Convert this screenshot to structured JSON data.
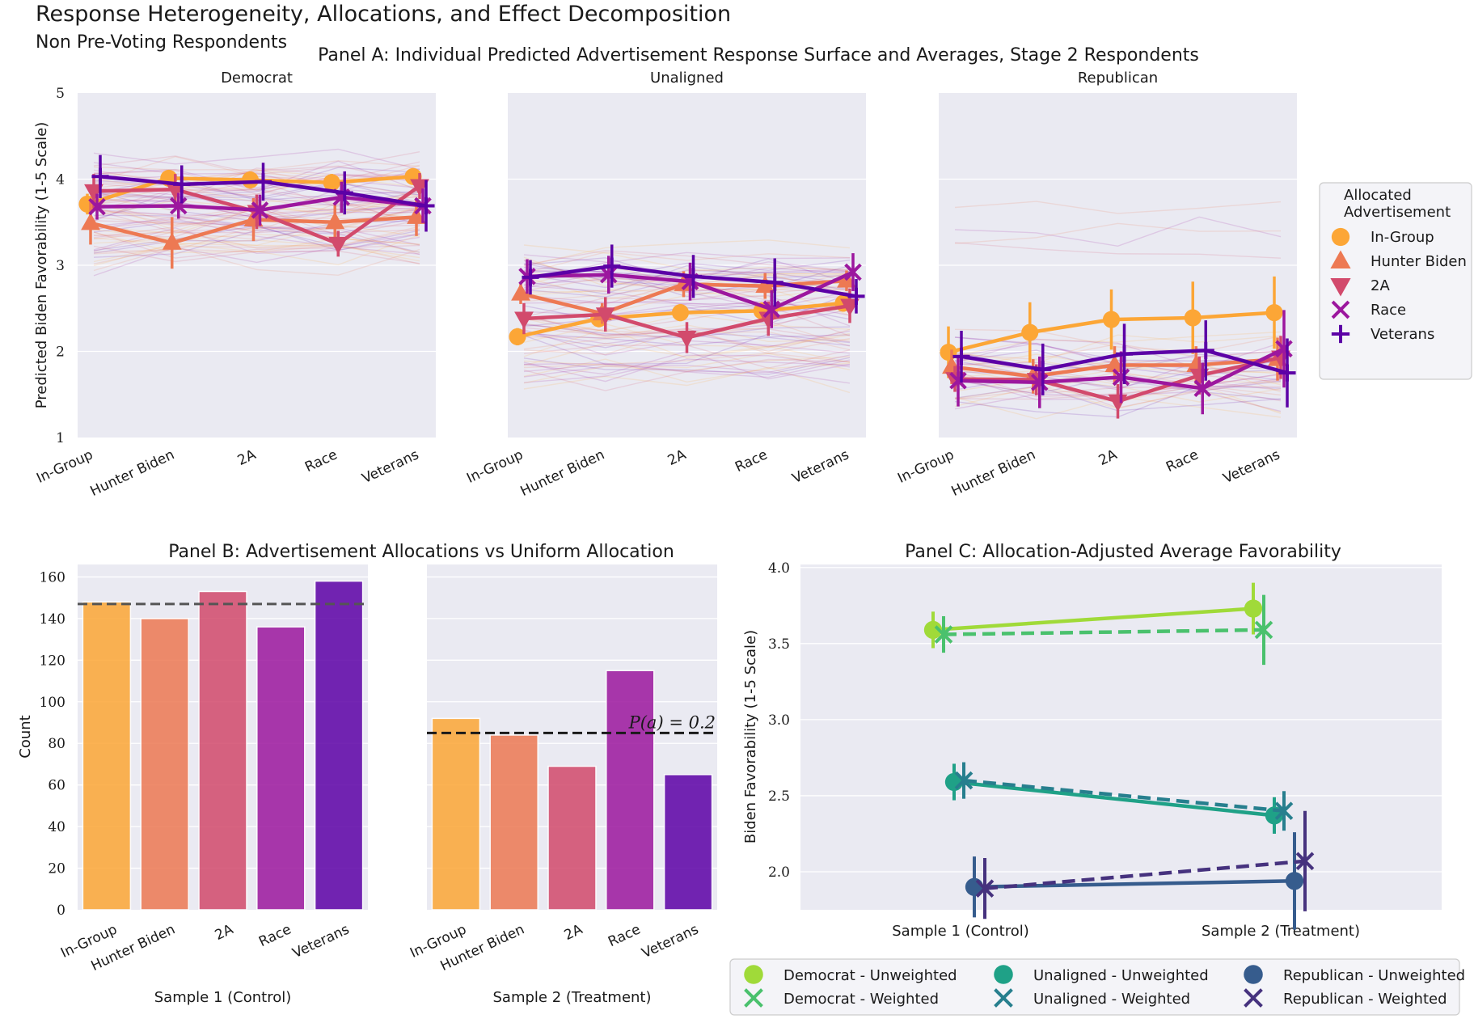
{
  "figure": {
    "title": "Response Heterogeneity, Allocations, and Effect Decomposition",
    "subtitle": "Non Pre-Voting Respondents"
  },
  "colors": {
    "ingroup": "#fca636",
    "hunter": "#ed7953",
    "twoa": "#d24a6c",
    "race": "#9c179e",
    "veterans": "#5c01a6",
    "bg": "#eaeaf2",
    "dem_unw": "#a0da39",
    "dem_w": "#4ac16d",
    "una_unw": "#1fa187",
    "una_w": "#277f8e",
    "rep_unw": "#365c8d",
    "rep_w": "#46327e"
  },
  "chart_data": [
    {
      "id": "panelA",
      "type": "line",
      "title": "Panel A: Individual Predicted Advertisement Response Surface and Averages, Stage 2 Respondents",
      "ylabel": "Predicted Biden Favorability (1-5 Scale)",
      "ylim": [
        1,
        5
      ],
      "yticks": [
        1,
        2,
        3,
        4,
        5
      ],
      "categories": [
        "In-Group",
        "Hunter Biden",
        "2A",
        "Race",
        "Veterans"
      ],
      "legend": {
        "title_line1": "Allocated",
        "title_line2": "Advertisement",
        "placement": "right",
        "entries": [
          "In-Group",
          "Hunter Biden",
          "2A",
          "Race",
          "Veterans"
        ]
      },
      "subplots": [
        {
          "title": "Democrat",
          "series": [
            {
              "name": "In-Group",
              "values": [
                3.71,
                4.01,
                3.99,
                3.96,
                4.03
              ],
              "err": [
                0.12,
                0.08,
                0.1,
                0.1,
                0.08
              ]
            },
            {
              "name": "Hunter Biden",
              "values": [
                3.49,
                3.26,
                3.53,
                3.5,
                3.56
              ],
              "err": [
                0.25,
                0.3,
                0.25,
                0.2,
                0.22
              ]
            },
            {
              "name": "2A",
              "values": [
                3.86,
                3.88,
                3.62,
                3.25,
                3.92
              ],
              "err": [
                0.2,
                0.18,
                0.2,
                0.15,
                0.15
              ]
            },
            {
              "name": "Race",
              "values": [
                3.68,
                3.69,
                3.64,
                3.79,
                3.69
              ],
              "err": [
                0.15,
                0.15,
                0.18,
                0.18,
                0.2
              ]
            },
            {
              "name": "Veterans",
              "values": [
                4.03,
                3.94,
                3.97,
                3.84,
                3.69
              ],
              "err": [
                0.25,
                0.22,
                0.22,
                0.25,
                0.3
              ]
            }
          ]
        },
        {
          "title": "Unaligned",
          "series": [
            {
              "name": "In-Group",
              "values": [
                2.17,
                2.38,
                2.45,
                2.47,
                2.56
              ],
              "err": [
                0.1,
                0.1,
                0.1,
                0.1,
                0.1
              ]
            },
            {
              "name": "Hunter Biden",
              "values": [
                2.67,
                2.44,
                2.78,
                2.76,
                2.82
              ],
              "err": [
                0.12,
                0.12,
                0.15,
                0.15,
                0.12
              ]
            },
            {
              "name": "2A",
              "values": [
                2.38,
                2.43,
                2.16,
                2.38,
                2.53
              ],
              "err": [
                0.18,
                0.2,
                0.18,
                0.2,
                0.2
              ]
            },
            {
              "name": "Race",
              "values": [
                2.87,
                2.89,
                2.81,
                2.49,
                2.92
              ],
              "err": [
                0.2,
                0.22,
                0.22,
                0.22,
                0.22
              ]
            },
            {
              "name": "Veterans",
              "values": [
                2.86,
                2.99,
                2.87,
                2.8,
                2.64
              ],
              "err": [
                0.2,
                0.25,
                0.25,
                0.28,
                0.2
              ]
            }
          ]
        },
        {
          "title": "Republican",
          "series": [
            {
              "name": "In-Group",
              "values": [
                1.99,
                2.22,
                2.37,
                2.39,
                2.45
              ],
              "err": [
                0.3,
                0.35,
                0.35,
                0.42,
                0.42
              ]
            },
            {
              "name": "Hunter Biden",
              "values": [
                1.82,
                1.71,
                1.84,
                1.84,
                1.91
              ],
              "err": [
                0.2,
                0.2,
                0.22,
                0.22,
                0.25
              ]
            },
            {
              "name": "2A",
              "values": [
                1.68,
                1.67,
                1.42,
                1.72,
                1.93
              ],
              "err": [
                0.15,
                0.18,
                0.2,
                0.22,
                0.25
              ]
            },
            {
              "name": "Race",
              "values": [
                1.66,
                1.64,
                1.7,
                1.57,
                2.03
              ],
              "err": [
                0.3,
                0.3,
                0.3,
                0.3,
                0.45
              ]
            },
            {
              "name": "Veterans",
              "values": [
                1.94,
                1.79,
                1.97,
                2.01,
                1.75
              ],
              "err": [
                0.3,
                0.3,
                0.35,
                0.35,
                0.4
              ]
            }
          ]
        }
      ]
    },
    {
      "id": "panelB",
      "type": "bar",
      "title": "Panel B: Advertisement Allocations vs Uniform Allocation",
      "ylabel": "Count",
      "ylim": [
        0,
        166
      ],
      "yticks": [
        0,
        20,
        40,
        60,
        80,
        100,
        120,
        140,
        160
      ],
      "categories": [
        "In-Group",
        "Hunter Biden",
        "2A",
        "Race",
        "Veterans"
      ],
      "subplots": [
        {
          "xlabel": "Sample 1 (Control)",
          "values": [
            148,
            140,
            153,
            136,
            158
          ],
          "reference": 147.0,
          "annotation": ""
        },
        {
          "xlabel": "Sample 2 (Treatment)",
          "values": [
            92,
            84,
            69,
            115,
            65
          ],
          "reference": 85.0,
          "annotation": "P(a) = 0.2"
        }
      ]
    },
    {
      "id": "panelC",
      "type": "line",
      "title": "Panel C: Allocation-Adjusted Average Favorability",
      "ylabel": "Biden Favorability (1-5 Scale)",
      "ylim": [
        1.75,
        4.02
      ],
      "yticks": [
        "2.0",
        "2.5",
        "3.0",
        "3.5",
        "4.0"
      ],
      "categories": [
        "Sample 1 (Control)",
        "Sample 2 (Treatment)"
      ],
      "series": [
        {
          "name": "Democrat - Unweighted",
          "values": [
            3.59,
            3.73
          ],
          "err": [
            0.12,
            0.17
          ],
          "style": "solid",
          "marker": "o"
        },
        {
          "name": "Democrat - Weighted",
          "values": [
            3.56,
            3.59
          ],
          "err": [
            0.12,
            0.23
          ],
          "style": "dashed",
          "marker": "x"
        },
        {
          "name": "Unaligned - Unweighted",
          "values": [
            2.59,
            2.37
          ],
          "err": [
            0.12,
            0.12
          ],
          "style": "solid",
          "marker": "o"
        },
        {
          "name": "Unaligned - Weighted",
          "values": [
            2.6,
            2.4
          ],
          "err": [
            0.12,
            0.13
          ],
          "style": "dashed",
          "marker": "x"
        },
        {
          "name": "Republican - Unweighted",
          "values": [
            1.9,
            1.94
          ],
          "err": [
            0.2,
            0.32
          ],
          "style": "solid",
          "marker": "o"
        },
        {
          "name": "Republican - Weighted",
          "values": [
            1.89,
            2.07
          ],
          "err": [
            0.2,
            0.33
          ],
          "style": "dashed",
          "marker": "x"
        }
      ],
      "legend": {
        "placement": "bottom",
        "entries": [
          "Democrat - Unweighted",
          "Democrat - Weighted",
          "Unaligned - Unweighted",
          "Unaligned - Weighted",
          "Republican - Unweighted",
          "Republican - Weighted"
        ]
      }
    }
  ]
}
